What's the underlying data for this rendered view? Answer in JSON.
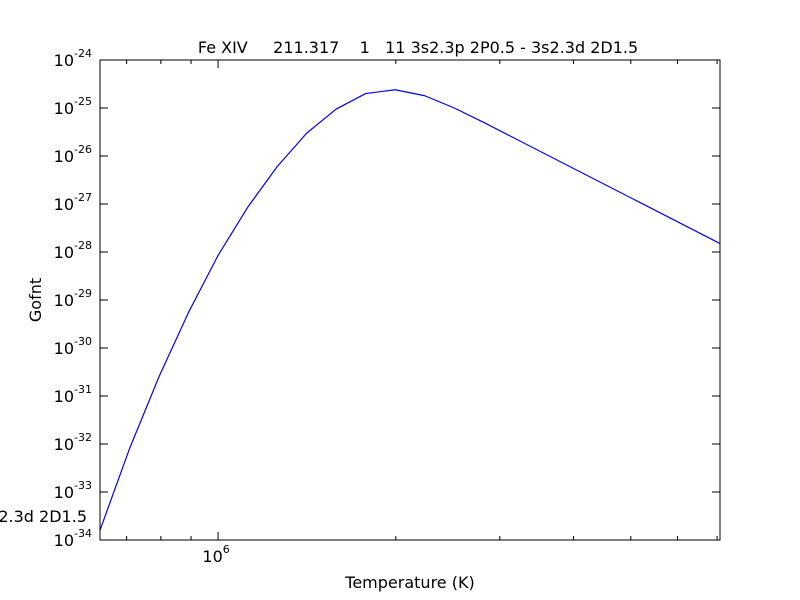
{
  "chart_data": {
    "type": "line",
    "title": "Fe XIV     211.317    1   11 3s2.3p 2P0.5 - 3s2.3d 2D1.5",
    "stray_label": "2.3d 2D1.5",
    "xlabel": "Temperature (K)",
    "ylabel": "Gofnt",
    "x_scale": "log",
    "y_scale": "log",
    "xlim": [
      631000,
      7080000
    ],
    "ylim": [
      1e-34,
      1e-24
    ],
    "x_tick_labels": [
      {
        "value": 1000000,
        "base": "10",
        "exp": "6"
      }
    ],
    "x_minor_ticks": [
      700000,
      800000,
      900000,
      2000000,
      3000000,
      4000000,
      5000000,
      6000000,
      7000000
    ],
    "y_tick_labels": [
      {
        "value": 1e-34,
        "base": "10",
        "exp": "-34"
      },
      {
        "value": 1e-33,
        "base": "10",
        "exp": "-33"
      },
      {
        "value": 1e-32,
        "base": "10",
        "exp": "-32"
      },
      {
        "value": 1e-31,
        "base": "10",
        "exp": "-31"
      },
      {
        "value": 1e-30,
        "base": "10",
        "exp": "-30"
      },
      {
        "value": 1e-29,
        "base": "10",
        "exp": "-29"
      },
      {
        "value": 1e-28,
        "base": "10",
        "exp": "-28"
      },
      {
        "value": 1e-27,
        "base": "10",
        "exp": "-27"
      },
      {
        "value": 1e-26,
        "base": "10",
        "exp": "-26"
      },
      {
        "value": 1e-25,
        "base": "10",
        "exp": "-25"
      },
      {
        "value": 1e-24,
        "base": "10",
        "exp": "-24"
      }
    ],
    "grid": false,
    "color": "#0000ff",
    "series": [
      {
        "x": [
          631000,
          708000,
          794000,
          891000,
          1000000,
          1122000,
          1259000,
          1413000,
          1585000,
          1778000,
          1995000,
          2239000,
          2512000,
          2818000,
          7080000
        ],
        "y": [
          1.6e-34,
          8e-33,
          2.5e-31,
          5.5e-30,
          8.5e-29,
          8.5e-28,
          6e-27,
          3e-26,
          9.5e-26,
          2e-25,
          2.4e-25,
          1.8e-25,
          1e-25,
          5e-26,
          1.5e-28
        ]
      }
    ]
  }
}
